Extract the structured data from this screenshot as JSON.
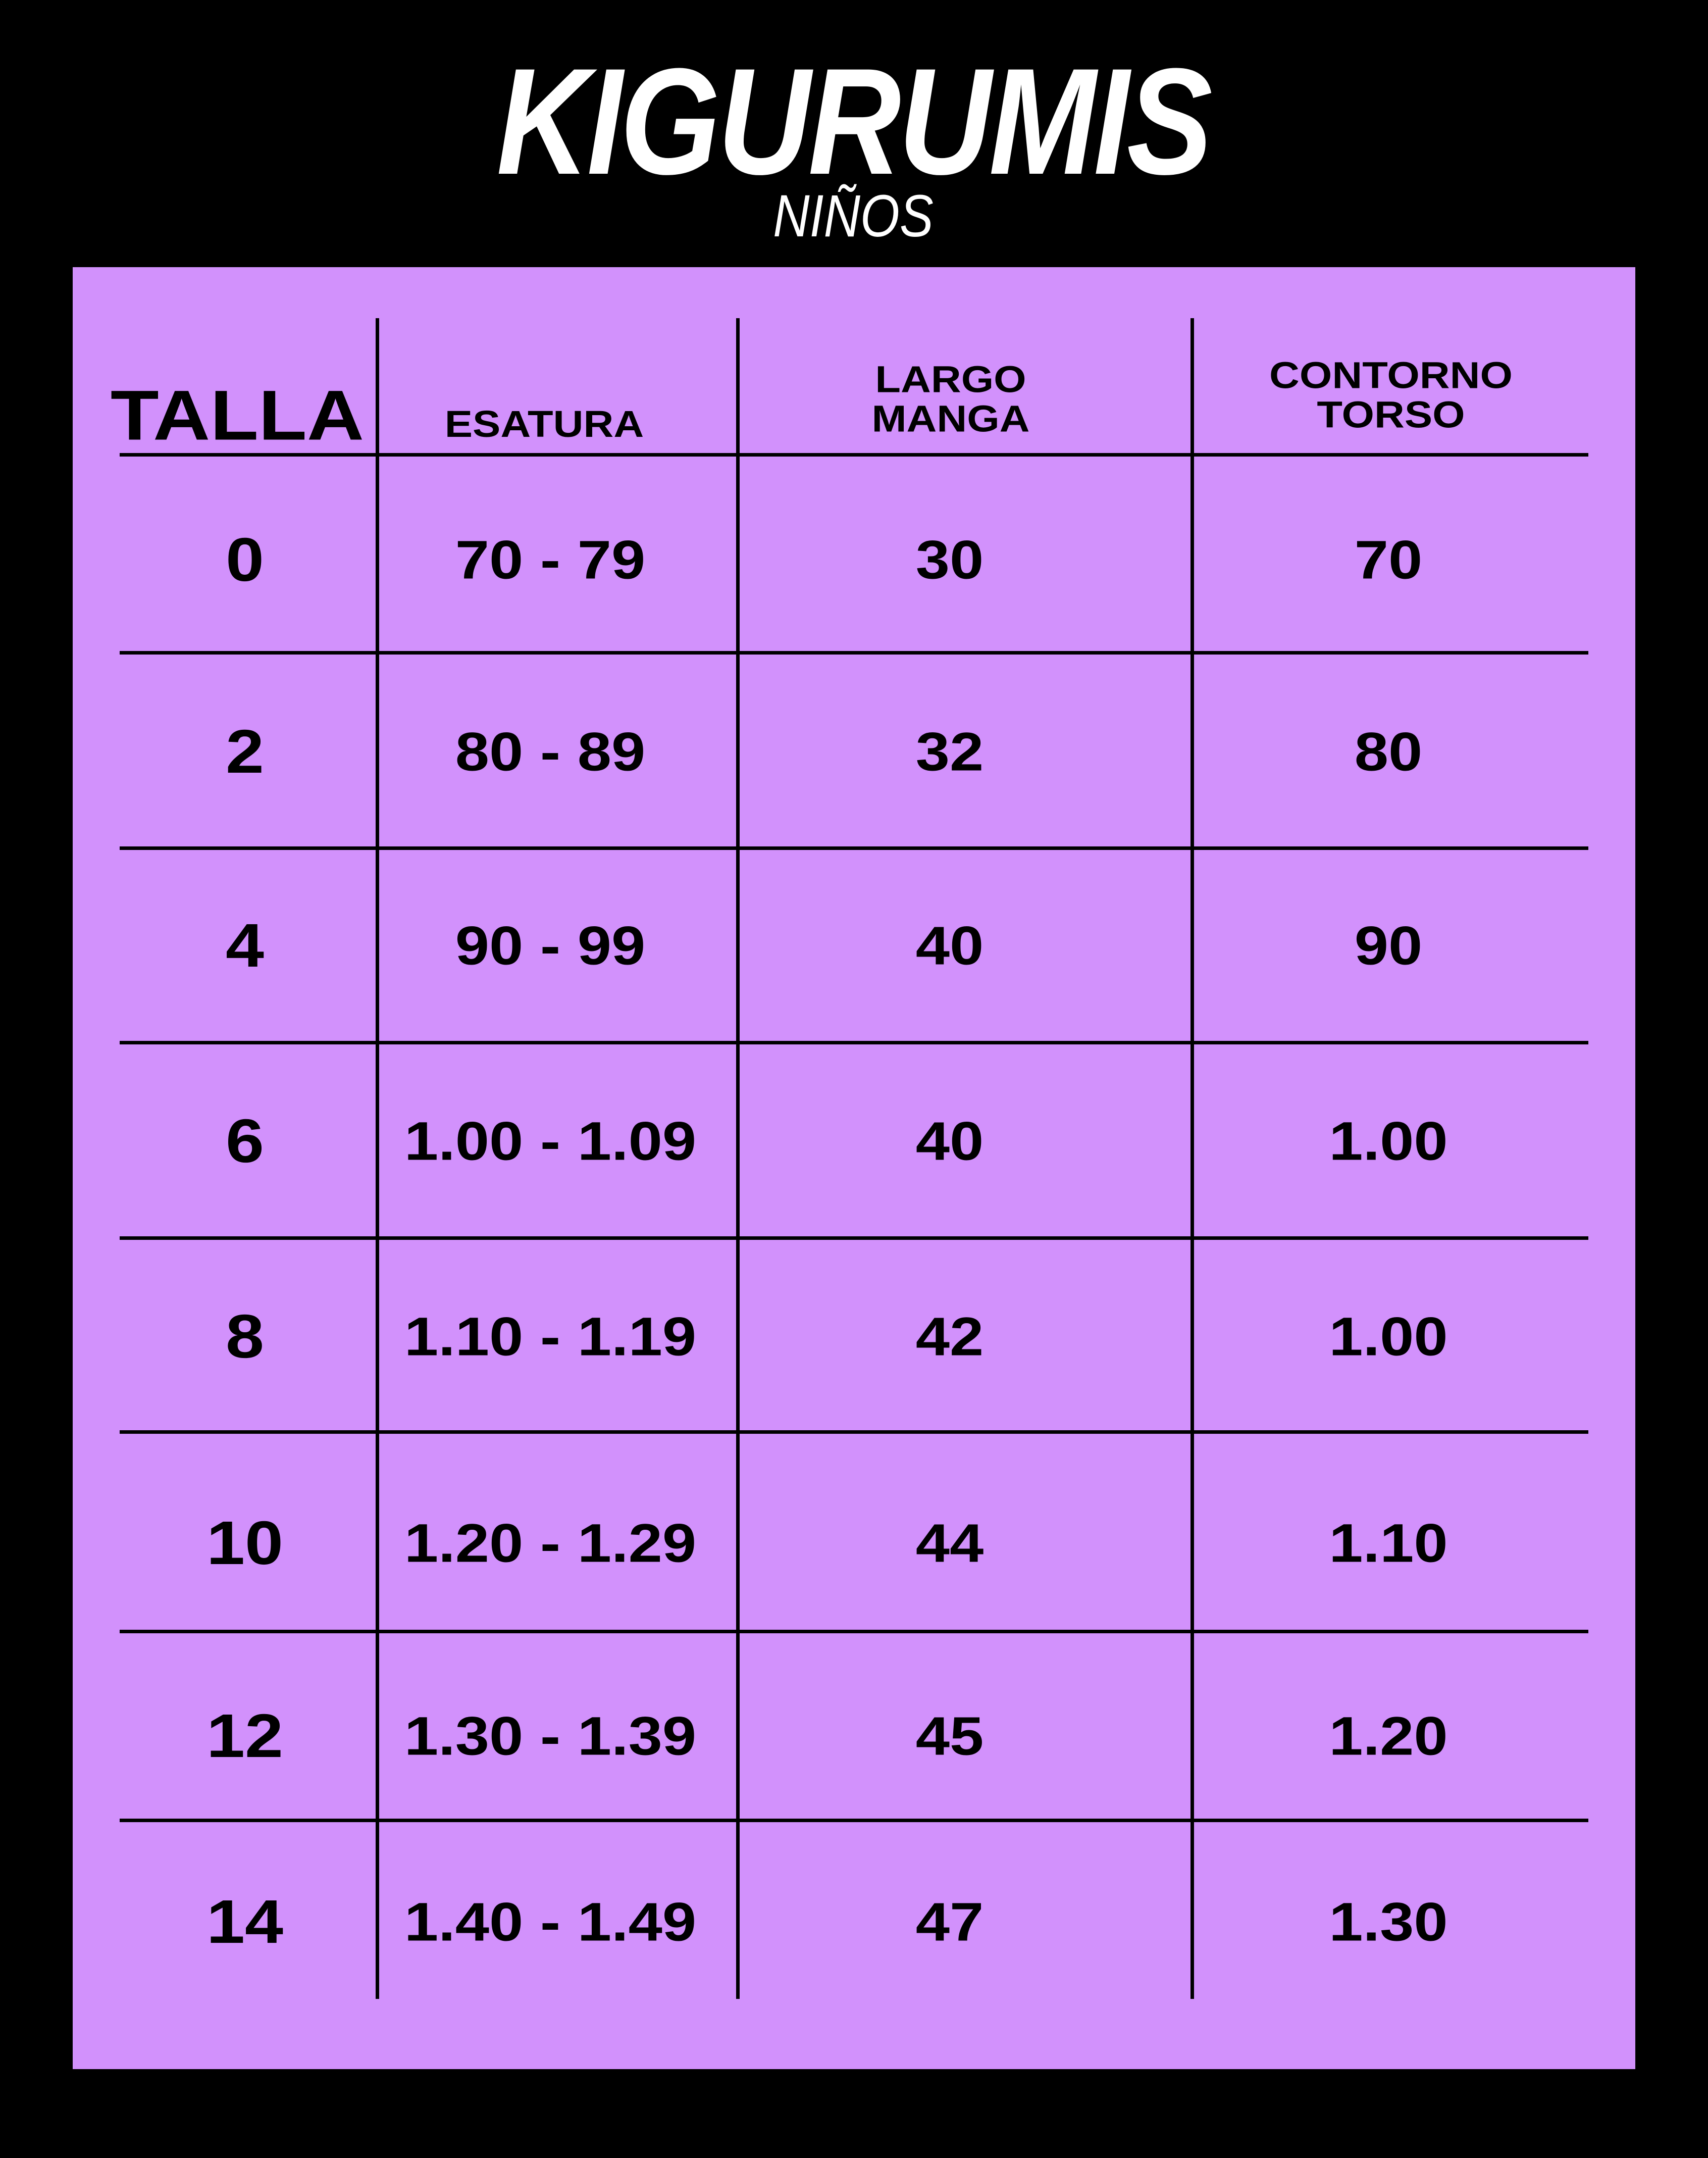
{
  "title": "KIGURUMIS",
  "subtitle": "NIÑOS",
  "colors": {
    "background": "#000000",
    "panel": "#d291fc",
    "text": "#000000",
    "title": "#ffffff"
  },
  "headers": {
    "talla": "TALLA",
    "estatura": "ESATURA",
    "largo_manga_1": "LARGO",
    "largo_manga_2": "MANGA",
    "contorno_torso_1": "CONTORNO",
    "contorno_torso_2": "TORSO"
  },
  "rows": [
    {
      "talla": "0",
      "estatura": "70 - 79",
      "largo_manga": "30",
      "contorno_torso": "70"
    },
    {
      "talla": "2",
      "estatura": "80 - 89",
      "largo_manga": "32",
      "contorno_torso": "80"
    },
    {
      "talla": "4",
      "estatura": "90 - 99",
      "largo_manga": "40",
      "contorno_torso": "90"
    },
    {
      "talla": "6",
      "estatura": "1.00 - 1.09",
      "largo_manga": "40",
      "contorno_torso": "1.00"
    },
    {
      "talla": "8",
      "estatura": "1.10 - 1.19",
      "largo_manga": "42",
      "contorno_torso": "1.00"
    },
    {
      "talla": "10",
      "estatura": "1.20 - 1.29",
      "largo_manga": "44",
      "contorno_torso": "1.10"
    },
    {
      "talla": "12",
      "estatura": "1.30 - 1.39",
      "largo_manga": "45",
      "contorno_torso": "1.20"
    },
    {
      "talla": "14",
      "estatura": "1.40 - 1.49",
      "largo_manga": "47",
      "contorno_torso": "1.30"
    }
  ]
}
